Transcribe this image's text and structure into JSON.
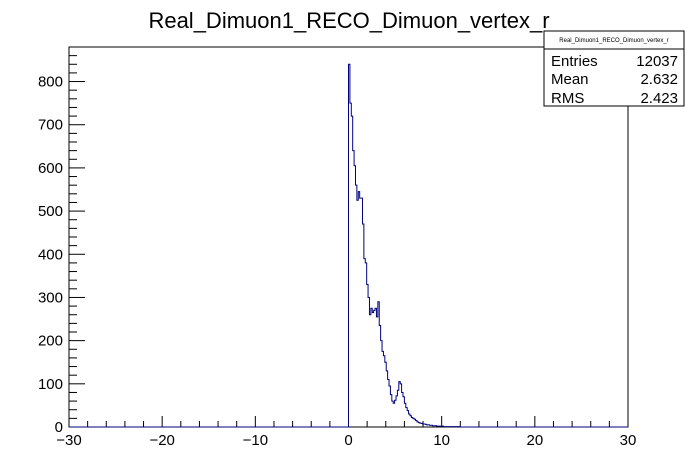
{
  "chart_data": {
    "type": "histogram",
    "title": "Real_Dimuon1_RECO_Dimuon_vertex_r",
    "xlabel": "",
    "ylabel": "",
    "xlim": [
      -30,
      30
    ],
    "ylim": [
      0,
      880
    ],
    "grid": false,
    "bin_width": 0.15,
    "x_ticks": [
      -30,
      -20,
      -10,
      0,
      10,
      20,
      30
    ],
    "y_ticks": [
      0,
      100,
      200,
      300,
      400,
      500,
      600,
      700,
      800
    ],
    "line_color": "#00007f",
    "stats_box": {
      "title": "Real_Dimuon1_RECO_Dimuon_vertex_r",
      "placement": "top-right",
      "rows": [
        {
          "label": "Entries",
          "value": "12037"
        },
        {
          "label": "Mean",
          "value": "2.632"
        },
        {
          "label": "RMS",
          "value": "2.423"
        }
      ]
    },
    "series": [
      {
        "x_start": 0.0,
        "values": [
          840,
          750,
          720,
          640,
          605,
          560,
          525,
          545,
          530,
          530,
          470,
          390,
          380,
          330,
          300,
          260,
          275,
          265,
          270,
          275,
          255,
          290,
          235,
          200,
          175,
          165,
          150,
          130,
          110,
          95,
          75,
          60,
          55,
          62,
          72,
          85,
          105,
          100,
          80,
          70,
          55,
          45,
          38,
          30,
          26,
          22,
          20,
          18,
          15,
          12,
          10,
          9,
          8,
          7,
          7,
          6,
          5,
          5,
          4,
          4,
          3,
          3,
          3,
          2,
          2,
          2,
          2,
          2,
          1,
          1,
          1,
          1,
          1,
          1,
          1,
          1,
          1,
          1,
          1,
          1,
          0,
          0,
          0,
          0,
          0,
          0,
          0,
          0,
          0,
          0,
          0,
          0,
          0,
          0,
          0,
          0,
          0,
          0,
          0,
          0
        ]
      }
    ]
  }
}
